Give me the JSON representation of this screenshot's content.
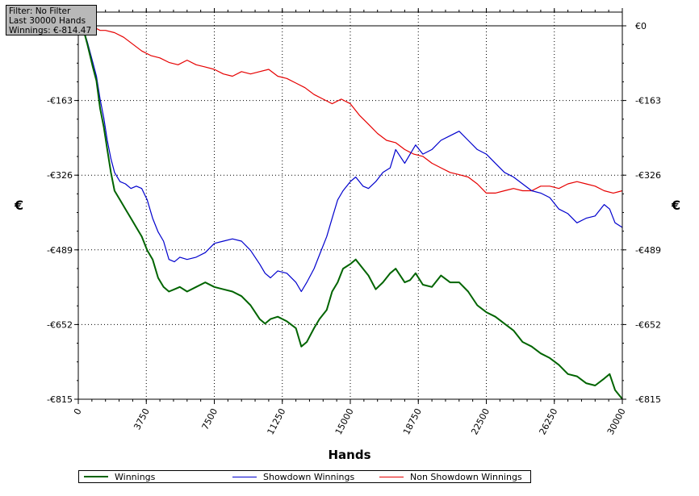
{
  "filter_box": {
    "line1": "Filter: No Filter",
    "line2": "Last  30000 Hands",
    "line3": "Winnings: €-814.47"
  },
  "chart_data": {
    "type": "line",
    "xlabel": "Hands",
    "ylabel": "€",
    "xlim": [
      0,
      30000
    ],
    "ylim": [
      -815,
      0
    ],
    "x_ticks": [
      0,
      3750,
      7500,
      11250,
      15000,
      18750,
      22500,
      26250,
      30000
    ],
    "x_tick_labels": [
      "0",
      "3750",
      "7500",
      "11250",
      "15000",
      "18750",
      "22500",
      "26250",
      "30000"
    ],
    "y_ticks": [
      0,
      -163,
      -326,
      -489,
      -652,
      -815
    ],
    "y_tick_labels": [
      "€0",
      "-€163",
      "-€326",
      "-€489",
      "-€652",
      "-€815"
    ],
    "grid": true,
    "legend_position": "bottom",
    "series": [
      {
        "name": "Winnings",
        "color": "#006400",
        "x": [
          0,
          300,
          500,
          800,
          1000,
          1200,
          1400,
          1600,
          1800,
          2000,
          2300,
          2600,
          2900,
          3200,
          3500,
          3800,
          4100,
          4400,
          4700,
          5000,
          5300,
          5600,
          6000,
          6500,
          7000,
          7500,
          8000,
          8500,
          9000,
          9500,
          10000,
          10300,
          10600,
          11000,
          11500,
          12000,
          12300,
          12600,
          13000,
          13300,
          13700,
          14000,
          14300,
          14600,
          15000,
          15300,
          15700,
          16000,
          16400,
          16800,
          17200,
          17500,
          18000,
          18300,
          18600,
          19000,
          19500,
          20000,
          20500,
          21000,
          21500,
          22000,
          22500,
          23000,
          23500,
          24000,
          24500,
          25000,
          25500,
          26000,
          26500,
          27000,
          27500,
          28000,
          28500,
          29000,
          29300,
          29600,
          30000
        ],
        "y": [
          0,
          -10,
          -40,
          -90,
          -120,
          -180,
          -220,
          -270,
          -320,
          -360,
          -380,
          -400,
          -420,
          -440,
          -460,
          -490,
          -510,
          -550,
          -570,
          -580,
          -575,
          -570,
          -580,
          -570,
          -560,
          -570,
          -575,
          -580,
          -590,
          -610,
          -640,
          -650,
          -640,
          -635,
          -645,
          -660,
          -700,
          -690,
          -660,
          -640,
          -620,
          -580,
          -560,
          -530,
          -520,
          -510,
          -530,
          -545,
          -575,
          -560,
          -540,
          -530,
          -560,
          -555,
          -540,
          -565,
          -570,
          -545,
          -560,
          -560,
          -580,
          -610,
          -625,
          -635,
          -650,
          -665,
          -690,
          -700,
          -715,
          -725,
          -740,
          -760,
          -765,
          -780,
          -785,
          -770,
          -760,
          -795,
          -814.47
        ]
      },
      {
        "name": "Showdown Winnings",
        "color": "#0000cd",
        "x": [
          0,
          300,
          500,
          800,
          1000,
          1200,
          1400,
          1600,
          1800,
          2000,
          2300,
          2600,
          2900,
          3200,
          3500,
          3800,
          4100,
          4400,
          4700,
          5000,
          5300,
          5600,
          6000,
          6500,
          7000,
          7500,
          8000,
          8500,
          9000,
          9500,
          10000,
          10300,
          10600,
          11000,
          11500,
          12000,
          12300,
          12600,
          13000,
          13300,
          13700,
          14000,
          14300,
          14600,
          15000,
          15300,
          15700,
          16000,
          16400,
          16800,
          17200,
          17500,
          18000,
          18300,
          18600,
          19000,
          19500,
          20000,
          20500,
          21000,
          21500,
          22000,
          22500,
          23000,
          23500,
          24000,
          24500,
          25000,
          25500,
          26000,
          26500,
          27000,
          27500,
          28000,
          28500,
          29000,
          29300,
          29600,
          30000
        ],
        "y": [
          0,
          -10,
          -35,
          -80,
          -110,
          -160,
          -200,
          -250,
          -290,
          -320,
          -340,
          -345,
          -355,
          -350,
          -355,
          -380,
          -420,
          -450,
          -470,
          -510,
          -515,
          -505,
          -510,
          -505,
          -495,
          -475,
          -470,
          -465,
          -470,
          -490,
          -520,
          -540,
          -550,
          -535,
          -540,
          -560,
          -580,
          -560,
          -530,
          -500,
          -460,
          -420,
          -380,
          -360,
          -340,
          -330,
          -350,
          -355,
          -340,
          -320,
          -310,
          -270,
          -300,
          -280,
          -260,
          -280,
          -270,
          -250,
          -240,
          -230,
          -250,
          -270,
          -280,
          -300,
          -320,
          -330,
          -345,
          -360,
          -365,
          -375,
          -400,
          -410,
          -430,
          -420,
          -415,
          -390,
          -400,
          -430,
          -440
        ]
      },
      {
        "name": "Non Showdown Winnings",
        "color": "#e60000",
        "x": [
          0,
          300,
          500,
          800,
          1000,
          1200,
          1500,
          2000,
          2500,
          3000,
          3500,
          4000,
          4500,
          5000,
          5500,
          6000,
          6500,
          7000,
          7500,
          8000,
          8500,
          9000,
          9500,
          10000,
          10500,
          11000,
          11500,
          12000,
          12500,
          13000,
          13500,
          14000,
          14500,
          15000,
          15500,
          16000,
          16500,
          17000,
          17500,
          18000,
          18500,
          19000,
          19500,
          20000,
          20500,
          21000,
          21500,
          22000,
          22500,
          23000,
          23500,
          24000,
          24500,
          25000,
          25500,
          26000,
          26500,
          27000,
          27500,
          28000,
          28500,
          29000,
          29500,
          30000
        ],
        "y": [
          0,
          0,
          -2,
          -5,
          -6,
          -10,
          -10,
          -15,
          -25,
          -40,
          -55,
          -65,
          -70,
          -80,
          -85,
          -75,
          -85,
          -90,
          -95,
          -105,
          -110,
          -100,
          -105,
          -100,
          -95,
          -110,
          -115,
          -125,
          -135,
          -150,
          -160,
          -170,
          -160,
          -170,
          -195,
          -215,
          -235,
          -250,
          -255,
          -270,
          -280,
          -285,
          -300,
          -310,
          -320,
          -325,
          -330,
          -345,
          -365,
          -365,
          -360,
          -355,
          -360,
          -360,
          -350,
          -350,
          -355,
          -345,
          -340,
          -345,
          -350,
          -360,
          -365,
          -360
        ]
      }
    ]
  }
}
